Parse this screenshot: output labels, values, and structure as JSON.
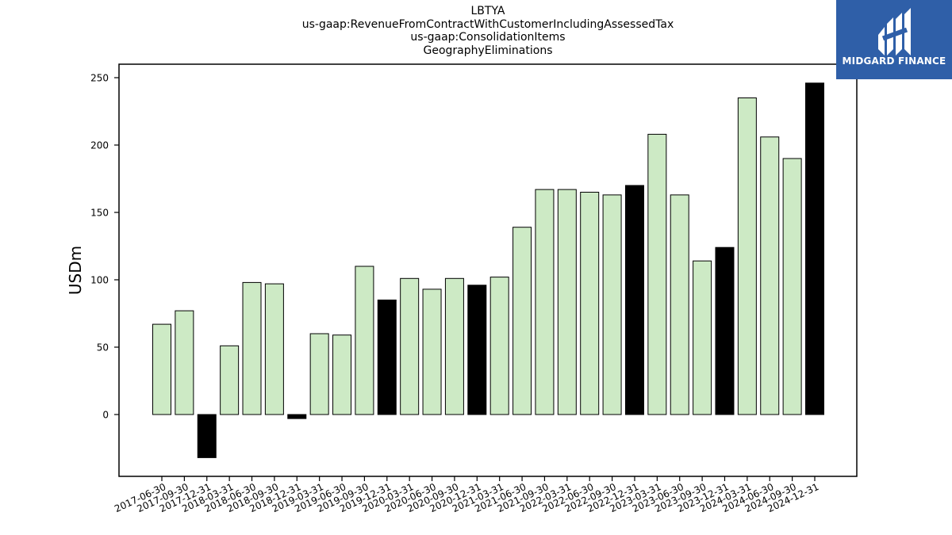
{
  "header": {
    "line1": "LBTYA",
    "line2": "us-gaap:RevenueFromContractWithCustomerIncludingAssessedTax",
    "line3": "us-gaap:ConsolidationItems",
    "line4": "GeographyEliminations"
  },
  "logo": {
    "text": "MIDGARD FINANCE",
    "background": "#2f5fa8"
  },
  "chart_data": {
    "type": "bar",
    "ylabel": "USDm",
    "xlabel": "",
    "ylim": [
      -45,
      260
    ],
    "yticks": [
      0,
      50,
      100,
      150,
      200,
      250
    ],
    "grid": false,
    "colors": {
      "quarter": "#cdeac5",
      "year_end": "#000000",
      "edge": "#000000"
    },
    "categories": [
      "2017-06-30",
      "2017-09-30",
      "2017-12-31",
      "2018-03-31",
      "2018-06-30",
      "2018-09-30",
      "2018-12-31",
      "2019-03-31",
      "2019-06-30",
      "2019-09-30",
      "2019-12-31",
      "2020-03-31",
      "2020-06-30",
      "2020-09-30",
      "2020-12-31",
      "2021-03-31",
      "2021-06-30",
      "2021-09-30",
      "2022-03-31",
      "2022-06-30",
      "2022-09-30",
      "2022-12-31",
      "2023-03-31",
      "2023-06-30",
      "2023-09-30",
      "2023-12-31",
      "2024-03-31",
      "2024-06-30",
      "2024-09-30",
      "2024-12-31"
    ],
    "values": [
      67,
      77,
      -32,
      51,
      98,
      97,
      -3,
      60,
      59,
      110,
      85,
      101,
      93,
      101,
      96,
      102,
      139,
      167,
      167,
      165,
      163,
      170,
      208,
      163,
      114,
      124,
      235,
      206,
      190,
      246
    ],
    "year_end": [
      false,
      false,
      true,
      false,
      false,
      false,
      true,
      false,
      false,
      false,
      true,
      false,
      false,
      false,
      true,
      false,
      false,
      false,
      false,
      false,
      false,
      true,
      false,
      false,
      false,
      true,
      false,
      false,
      false,
      true
    ]
  }
}
